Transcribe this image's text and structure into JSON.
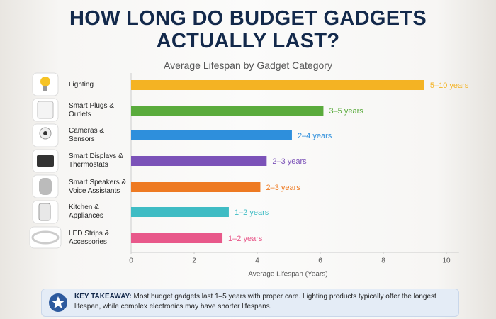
{
  "chart_data": {
    "type": "bar",
    "orientation": "horizontal",
    "title": "HOW LONG DO BUDGET GADGETS ACTUALLY LAST?",
    "subtitle": "Average Lifespan by Gadget Category",
    "x_label": "Average Lifespan (Years)",
    "categories": [
      "Lighting",
      "Smart Plugs & Outlets",
      "Cameras & Sensors",
      "Smart Displays & Thermostats",
      "Smart Speakers & Voice Assistants",
      "Kitchen & Appliances",
      "LED Strips & Accessories"
    ],
    "values": [
      9.3,
      6.1,
      5.1,
      4.3,
      4.1,
      3.1,
      2.9
    ],
    "bar_labels": [
      "5–10 years",
      "3–5 years",
      "2–4 years",
      "2–3 years",
      "2–3 years",
      "1–2 years",
      "1–2 years"
    ],
    "colors": [
      "#f4b323",
      "#5aab3c",
      "#2e8fdc",
      "#7b52b8",
      "#ee7a22",
      "#3fbcc4",
      "#e8588a"
    ],
    "xlim": [
      0,
      10.4
    ],
    "xticks": [
      0,
      2,
      4,
      6,
      8,
      10
    ],
    "grid": false
  },
  "key_takeaway": {
    "label": "KEY TAKEAWAY:",
    "text": "Most budget gadgets last 1–5 years with proper care. Lighting products typically offer the longest lifespan, while complex electronics may have shorter lifespans."
  }
}
